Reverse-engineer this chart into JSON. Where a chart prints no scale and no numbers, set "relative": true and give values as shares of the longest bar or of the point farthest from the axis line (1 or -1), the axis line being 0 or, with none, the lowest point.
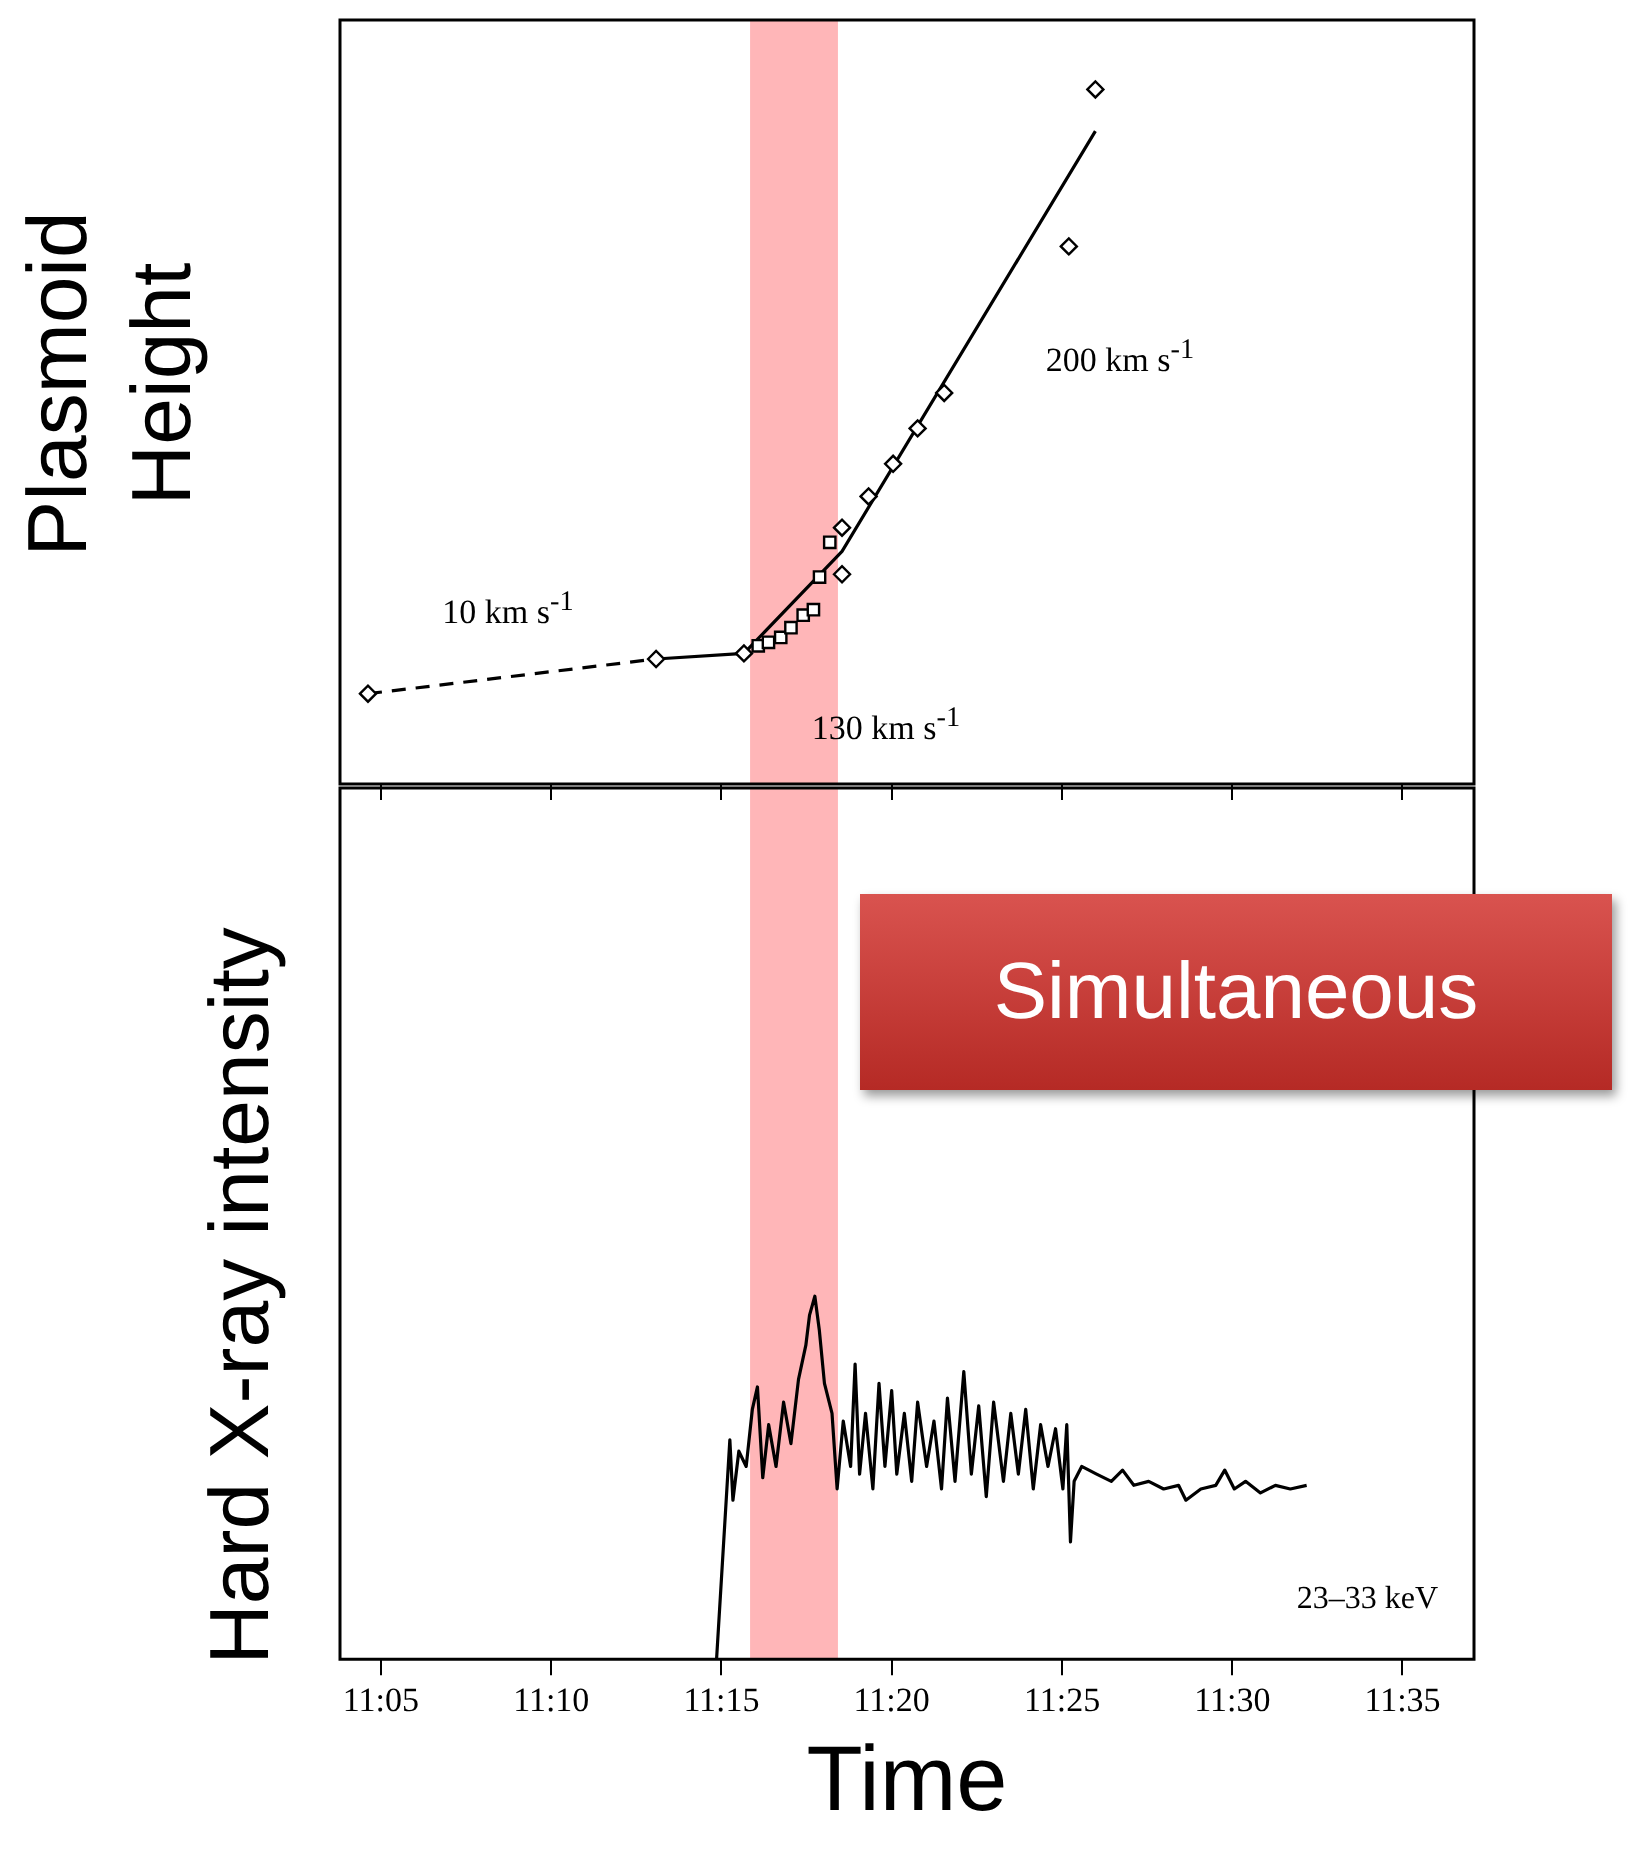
{
  "chart_data": [
    {
      "type": "scatter",
      "ylabel": "Plasmoid Height",
      "relative": true,
      "tick_labels": false,
      "xlim": [
        11.0633,
        11.6183
      ],
      "xticks": [
        {
          "value": 11.0833,
          "label": null
        },
        {
          "value": 11.1667,
          "label": null
        },
        {
          "value": 11.25,
          "label": null
        },
        {
          "value": 11.3333,
          "label": null
        },
        {
          "value": 11.4167,
          "label": null
        },
        {
          "value": 11.5,
          "label": null
        },
        {
          "value": 11.5833,
          "label": null
        }
      ],
      "series": [
        {
          "marker": "diamond",
          "color": "#000000",
          "x": [
            11.077,
            11.218,
            11.261,
            11.309,
            11.309,
            11.322,
            11.334,
            11.346,
            11.359,
            11.42,
            11.433
          ],
          "values": [
            0.13,
            0.18,
            0.188,
            0.369,
            0.302,
            0.414,
            0.461,
            0.512,
            0.563,
            0.774,
            1.0
          ]
        },
        {
          "marker": "square",
          "color": "#000000",
          "x": [
            11.268,
            11.273,
            11.279,
            11.284,
            11.29,
            11.295,
            11.298,
            11.303
          ],
          "values": [
            0.199,
            0.204,
            0.211,
            0.225,
            0.243,
            0.251,
            0.298,
            0.348
          ]
        },
        {
          "type": "line",
          "marker": "none",
          "line_style": "dashed",
          "color": "#000000",
          "x": [
            11.077,
            11.218
          ],
          "values": [
            0.13,
            0.18
          ]
        },
        {
          "type": "line",
          "marker": "none",
          "line_style": "solid",
          "color": "#000000",
          "x": [
            11.218,
            11.261,
            11.309,
            11.433
          ],
          "values": [
            0.18,
            0.188,
            0.335,
            0.94
          ]
        }
      ],
      "bands": [
        {
          "axis": "x",
          "from": 11.264,
          "to": 11.307,
          "color": "#ffb6b8"
        }
      ],
      "annotations": [
        "10 km s$^{-1}$",
        "130 km s$^{-1}$",
        "200 km s$^{-1}$"
      ]
    },
    {
      "type": "line",
      "ylabel": "Hard X-ray intensity",
      "xlabel": "Time",
      "relative": true,
      "tick_labels": "x",
      "xlim": [
        11.0633,
        11.6183
      ],
      "xticks": [
        {
          "value": 11.0833,
          "label": "11:05"
        },
        {
          "value": 11.1667,
          "label": "11:10"
        },
        {
          "value": 11.25,
          "label": "11:15"
        },
        {
          "value": 11.3333,
          "label": "11:20"
        },
        {
          "value": 11.4167,
          "label": "11:25"
        },
        {
          "value": 11.5,
          "label": "11:30"
        },
        {
          "value": 11.5833,
          "label": "11:35"
        }
      ],
      "series": [
        {
          "name": "23–33 keV",
          "marker": "none",
          "color": "#000000",
          "x": [
            11.2476,
            11.2541,
            11.2556,
            11.2585,
            11.2621,
            11.2651,
            11.2676,
            11.2702,
            11.2731,
            11.2767,
            11.2804,
            11.284,
            11.2877,
            11.2913,
            11.2931,
            11.2957,
            11.2979,
            11.3004,
            11.3041,
            11.3066,
            11.3096,
            11.3132,
            11.3154,
            11.3176,
            11.3205,
            11.3241,
            11.3271,
            11.33,
            11.3333,
            11.3358,
            11.3395,
            11.3431,
            11.346,
            11.3504,
            11.354,
            11.3577,
            11.3606,
            11.3643,
            11.3686,
            11.3723,
            11.3759,
            11.3796,
            11.3832,
            11.388,
            11.3916,
            11.3953,
            11.3989,
            11.4026,
            11.4062,
            11.4098,
            11.4135,
            11.4171,
            11.419,
            11.4208,
            11.4226,
            11.4263,
            11.4336,
            11.4408,
            11.4463,
            11.4518,
            11.4591,
            11.4664,
            11.4737,
            11.4773,
            11.4846,
            11.4919,
            11.4963,
            11.501,
            11.5065,
            11.5138,
            11.5211,
            11.5284,
            11.5364
          ],
          "values": [
            0,
            0.604,
            0.438,
            0.573,
            0.531,
            0.688,
            0.75,
            0.5,
            0.646,
            0.531,
            0.708,
            0.594,
            0.771,
            0.865,
            0.948,
            1.0,
            0.906,
            0.76,
            0.677,
            0.469,
            0.656,
            0.531,
            0.813,
            0.51,
            0.677,
            0.469,
            0.76,
            0.531,
            0.74,
            0.51,
            0.677,
            0.49,
            0.708,
            0.531,
            0.656,
            0.469,
            0.719,
            0.49,
            0.792,
            0.51,
            0.698,
            0.448,
            0.708,
            0.49,
            0.677,
            0.51,
            0.688,
            0.469,
            0.646,
            0.531,
            0.635,
            0.469,
            0.646,
            0.323,
            0.49,
            0.531,
            0.51,
            0.49,
            0.521,
            0.479,
            0.49,
            0.469,
            0.479,
            0.438,
            0.469,
            0.479,
            0.521,
            0.469,
            0.49,
            0.458,
            0.479,
            0.469,
            0.479
          ]
        }
      ],
      "bands": [
        {
          "axis": "x",
          "from": 11.264,
          "to": 11.307,
          "color": "#ffb6b8"
        }
      ],
      "annotations": [
        "Simultaneous"
      ]
    }
  ]
}
